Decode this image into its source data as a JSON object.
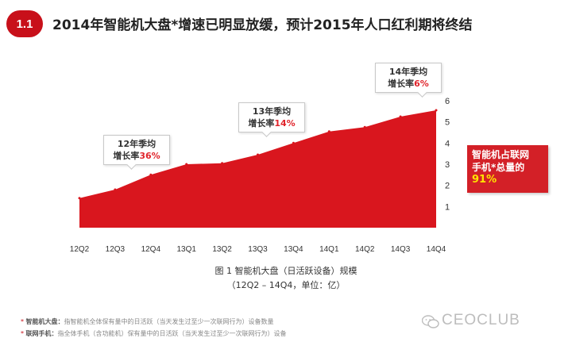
{
  "header": {
    "section_number": "1.1",
    "title": "2014年智能机大盘*增速已明显放缓，预计2015年人口红利期将终结"
  },
  "chart_data": {
    "type": "area",
    "categories": [
      "12Q2",
      "12Q3",
      "12Q4",
      "13Q1",
      "13Q2",
      "13Q3",
      "13Q4",
      "14Q1",
      "14Q2",
      "14Q3",
      "14Q4"
    ],
    "values": [
      1.4,
      1.8,
      2.5,
      3.0,
      3.05,
      3.45,
      4.0,
      4.55,
      4.75,
      5.25,
      5.55
    ],
    "ylim": [
      0,
      6
    ],
    "yticks": [
      "1",
      "2",
      "3",
      "4",
      "5",
      "6"
    ],
    "y_axis_side": "right",
    "series_color": "#d9161e",
    "title": "图 1 智能机大盘（日活跃设备）规模",
    "subtitle": "（12Q2 – 14Q4，单位：亿）",
    "annotations": [
      {
        "line1": "12年季均",
        "line2_prefix": "增长率",
        "rate": "36%"
      },
      {
        "line1": "13年季均",
        "line2_prefix": "增长率",
        "rate": "14%"
      },
      {
        "line1": "14年季均",
        "line2_prefix": "增长率",
        "rate": "6%"
      }
    ]
  },
  "share_box": {
    "line1": "智能机占联网",
    "line2": "手机*总量的",
    "value": "91%"
  },
  "notes": [
    {
      "star": "*",
      "term": "智能机大盘：",
      "text": "指智能机全体保有量中的日活跃（当天发生过至少一次联网行为）设备数量"
    },
    {
      "star": "*",
      "term": "联网手机：",
      "text": "指全体手机（含功能机）保有量中的日活跃（当天发生过至少一次联网行为）设备"
    }
  ],
  "watermark": {
    "text": "CEOCLUB",
    "icon": "wechat-icon"
  }
}
